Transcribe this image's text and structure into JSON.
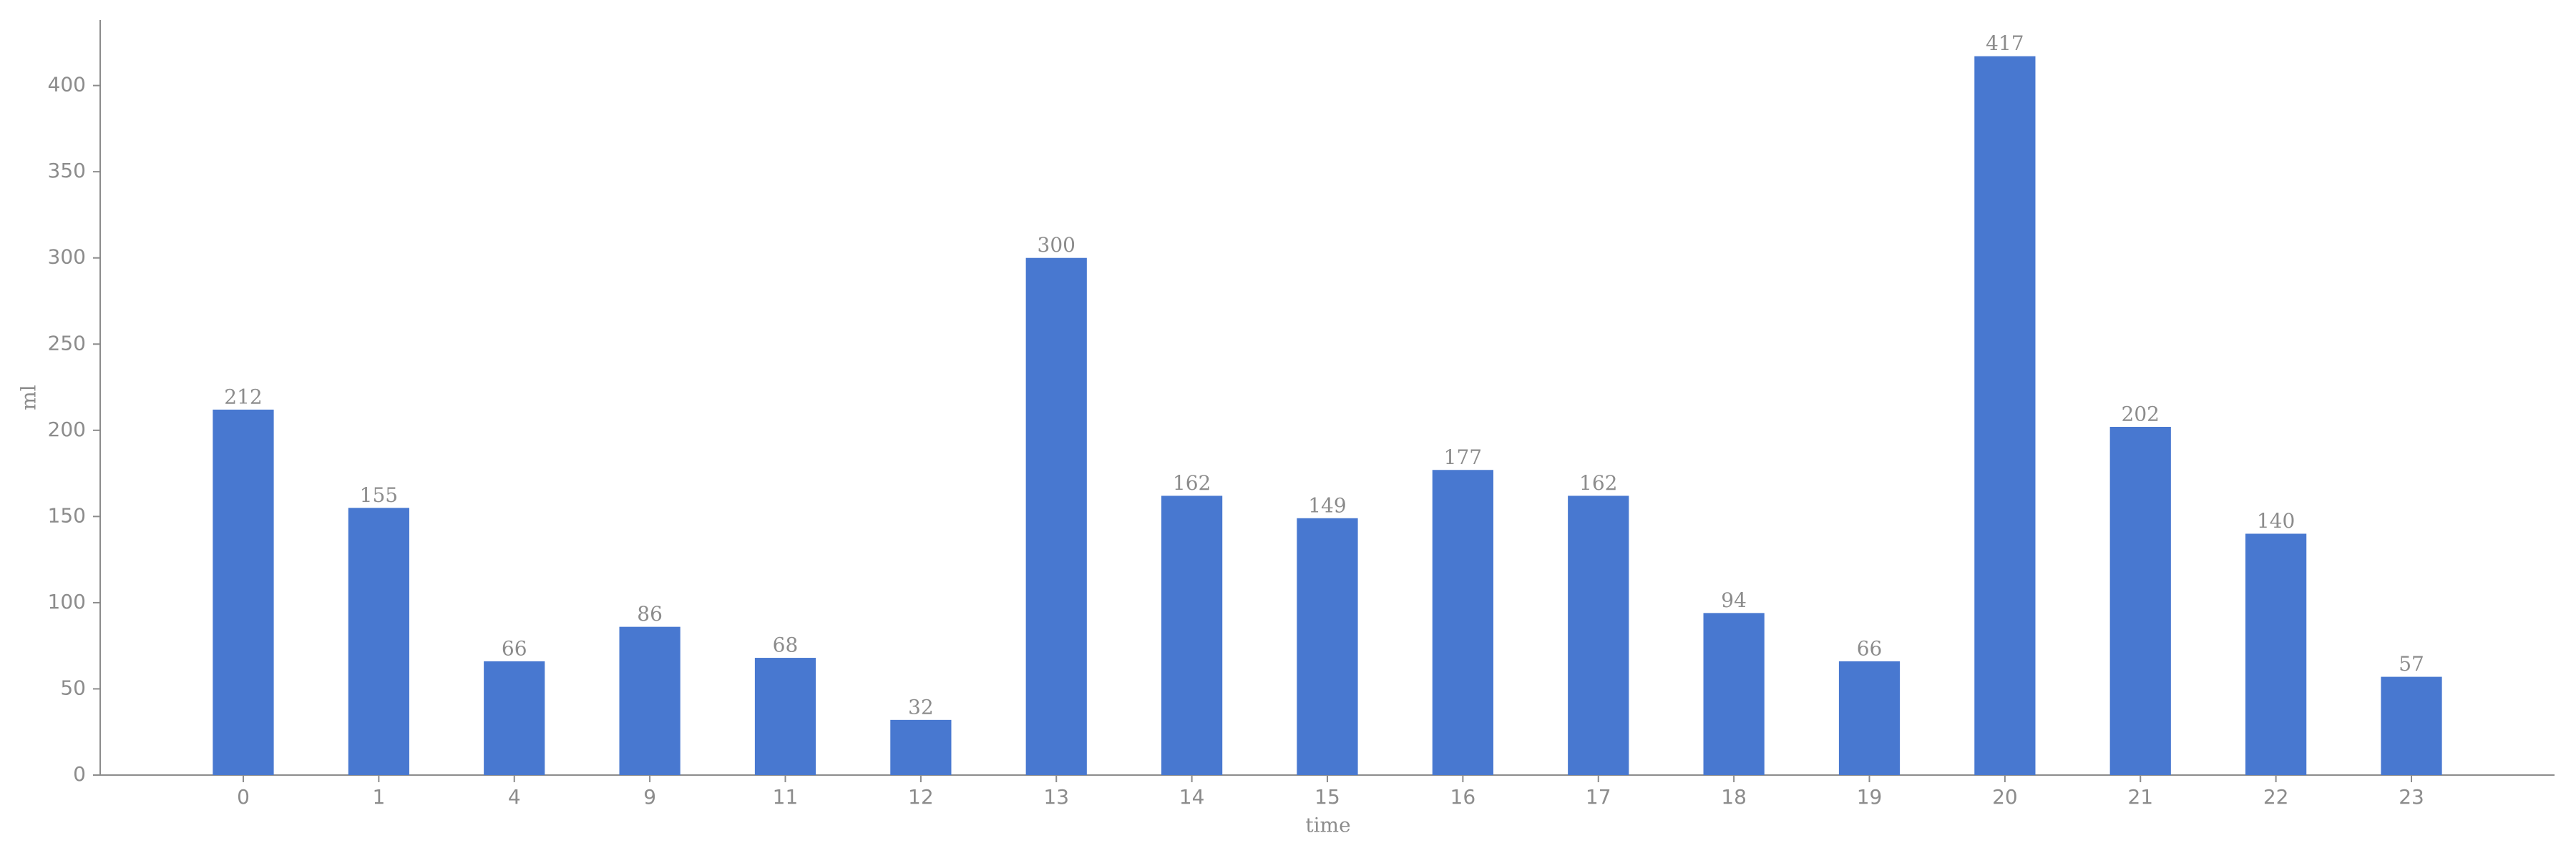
{
  "chart_data": {
    "type": "bar",
    "x_label": "time",
    "y_label": "ml",
    "categories": [
      "0",
      "1",
      "4",
      "9",
      "11",
      "12",
      "13",
      "14",
      "15",
      "16",
      "17",
      "18",
      "19",
      "20",
      "21",
      "22",
      "23"
    ],
    "values": [
      212,
      155,
      66,
      86,
      68,
      32,
      300,
      162,
      149,
      177,
      162,
      94,
      66,
      417,
      202,
      140,
      57
    ],
    "color": "#4878d0",
    "ylim": [
      0,
      438
    ],
    "yticks": [
      0,
      50,
      100,
      150,
      200,
      250,
      300,
      350,
      400
    ],
    "grid": false
  }
}
